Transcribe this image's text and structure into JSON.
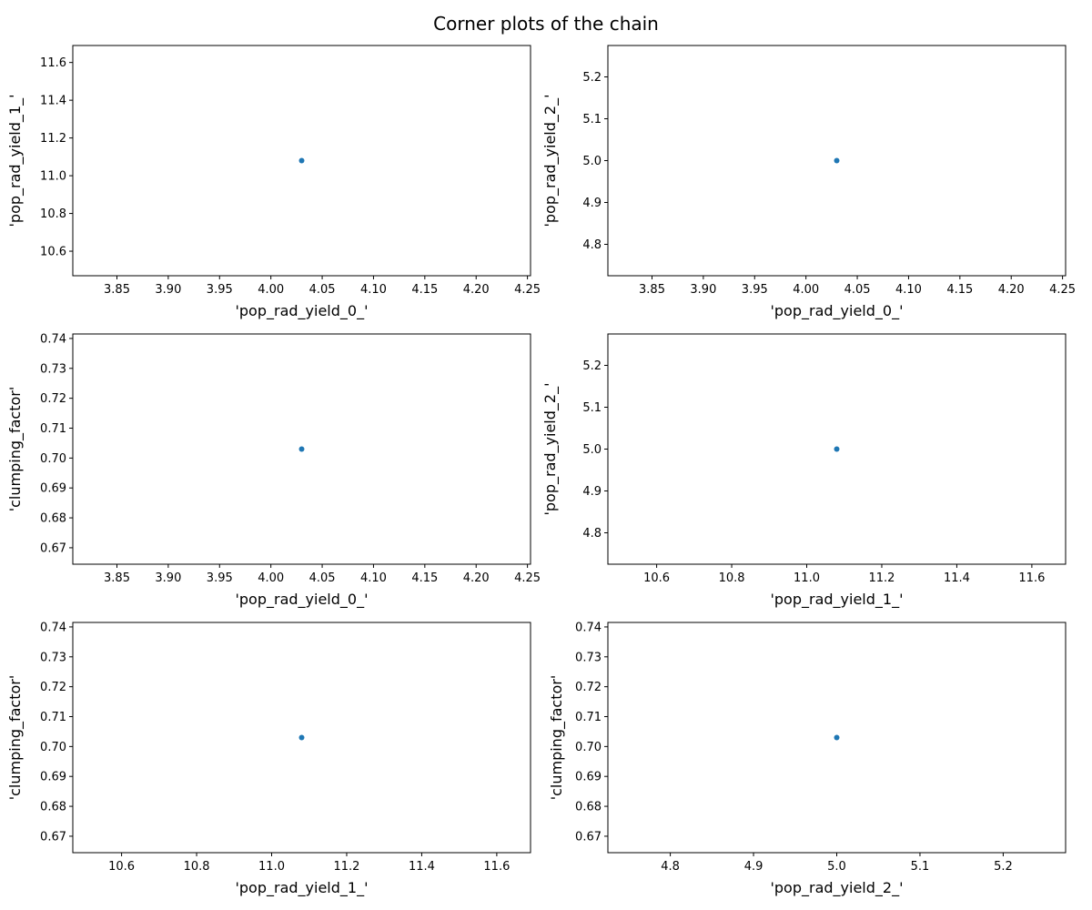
{
  "figure": {
    "title": "Corner plots of the chain"
  },
  "chart_data": [
    {
      "type": "scatter",
      "xlabel": "'pop_rad_yield_0_'",
      "ylabel": "'pop_rad_yield_1_'",
      "xlim": [
        3.807,
        4.253
      ],
      "ylim": [
        10.47,
        11.69
      ],
      "xticks": [
        "3.85",
        "3.90",
        "3.95",
        "4.00",
        "4.05",
        "4.10",
        "4.15",
        "4.20",
        "4.25"
      ],
      "yticks": [
        "10.6",
        "10.8",
        "11.0",
        "11.2",
        "11.4",
        "11.6"
      ],
      "points": [
        {
          "x": 4.03,
          "y": 11.08
        }
      ]
    },
    {
      "type": "scatter",
      "xlabel": "'pop_rad_yield_0_'",
      "ylabel": "'pop_rad_yield_2_'",
      "xlim": [
        3.807,
        4.253
      ],
      "ylim": [
        4.725,
        5.275
      ],
      "xticks": [
        "3.85",
        "3.90",
        "3.95",
        "4.00",
        "4.05",
        "4.10",
        "4.15",
        "4.20",
        "4.25"
      ],
      "yticks": [
        "4.8",
        "4.9",
        "5.0",
        "5.1",
        "5.2"
      ],
      "points": [
        {
          "x": 4.03,
          "y": 5.0
        }
      ]
    },
    {
      "type": "scatter",
      "xlabel": "'pop_rad_yield_0_'",
      "ylabel": "'clumping_factor'",
      "xlim": [
        3.807,
        4.253
      ],
      "ylim": [
        0.6645,
        0.7415
      ],
      "xticks": [
        "3.85",
        "3.90",
        "3.95",
        "4.00",
        "4.05",
        "4.10",
        "4.15",
        "4.20",
        "4.25"
      ],
      "yticks": [
        "0.67",
        "0.68",
        "0.69",
        "0.70",
        "0.71",
        "0.72",
        "0.73",
        "0.74"
      ],
      "points": [
        {
          "x": 4.03,
          "y": 0.703
        }
      ]
    },
    {
      "type": "scatter",
      "xlabel": "'pop_rad_yield_1_'",
      "ylabel": "'pop_rad_yield_2_'",
      "xlim": [
        10.47,
        11.69
      ],
      "ylim": [
        4.725,
        5.275
      ],
      "xticks": [
        "10.6",
        "10.8",
        "11.0",
        "11.2",
        "11.4",
        "11.6"
      ],
      "yticks": [
        "4.8",
        "4.9",
        "5.0",
        "5.1",
        "5.2"
      ],
      "points": [
        {
          "x": 11.08,
          "y": 5.0
        }
      ]
    },
    {
      "type": "scatter",
      "xlabel": "'pop_rad_yield_1_'",
      "ylabel": "'clumping_factor'",
      "xlim": [
        10.47,
        11.69
      ],
      "ylim": [
        0.6645,
        0.7415
      ],
      "xticks": [
        "10.6",
        "10.8",
        "11.0",
        "11.2",
        "11.4",
        "11.6"
      ],
      "yticks": [
        "0.67",
        "0.68",
        "0.69",
        "0.70",
        "0.71",
        "0.72",
        "0.73",
        "0.74"
      ],
      "points": [
        {
          "x": 11.08,
          "y": 0.703
        }
      ]
    },
    {
      "type": "scatter",
      "xlabel": "'pop_rad_yield_2_'",
      "ylabel": "'clumping_factor'",
      "xlim": [
        4.725,
        5.275
      ],
      "ylim": [
        0.6645,
        0.7415
      ],
      "xticks": [
        "4.8",
        "4.9",
        "5.0",
        "5.1",
        "5.2"
      ],
      "yticks": [
        "0.67",
        "0.68",
        "0.69",
        "0.70",
        "0.71",
        "0.72",
        "0.73",
        "0.74"
      ],
      "points": [
        {
          "x": 5.0,
          "y": 0.703
        }
      ]
    }
  ],
  "colors": {
    "marker": "#1f77b4",
    "axes": "#000000"
  }
}
